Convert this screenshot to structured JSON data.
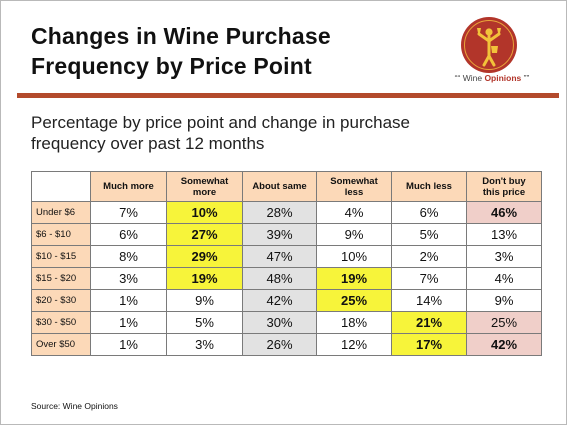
{
  "slide": {
    "title_line1": "Changes in Wine Purchase",
    "title_line2": "Frequency by Price Point",
    "subtitle_line1": "Percentage by price point and change in purchase",
    "subtitle_line2": "frequency over past 12 months",
    "source": "Source: Wine Opinions"
  },
  "logo": {
    "quote_open": "““",
    "brand_plain": "Wine ",
    "brand_bold": "Opinions",
    "quote_close": "””",
    "colors": {
      "circle": "#b2352a",
      "figure": "#f2c23a"
    }
  },
  "table": {
    "columns": [
      {
        "l1": "Much more",
        "l2": ""
      },
      {
        "l1": "Somewhat",
        "l2": "more"
      },
      {
        "l1": "About same",
        "l2": ""
      },
      {
        "l1": "Somewhat",
        "l2": "less"
      },
      {
        "l1": "Much less",
        "l2": ""
      },
      {
        "l1": "Don't buy",
        "l2": "this price"
      }
    ],
    "rows": [
      {
        "label": "Under $6",
        "values": [
          "7%",
          "10%",
          "28%",
          "4%",
          "6%",
          "46%"
        ]
      },
      {
        "label": "$6 - $10",
        "values": [
          "6%",
          "27%",
          "39%",
          "9%",
          "5%",
          "13%"
        ]
      },
      {
        "label": "$10 - $15",
        "values": [
          "8%",
          "29%",
          "47%",
          "10%",
          "2%",
          "3%"
        ]
      },
      {
        "label": "$15 - $20",
        "values": [
          "3%",
          "19%",
          "48%",
          "19%",
          "7%",
          "4%"
        ]
      },
      {
        "label": "$20 - $30",
        "values": [
          "1%",
          "9%",
          "42%",
          "25%",
          "14%",
          "9%"
        ]
      },
      {
        "label": "$30 - $50",
        "values": [
          "1%",
          "5%",
          "30%",
          "18%",
          "21%",
          "25%"
        ]
      },
      {
        "label": "Over $50",
        "values": [
          "1%",
          "3%",
          "26%",
          "12%",
          "17%",
          "42%"
        ]
      }
    ],
    "highlight_colors": {
      "header": "#fcd9b8",
      "gray": "#e2e2e2",
      "yellow": "#f7f43a",
      "pink": "#f0cfc9"
    }
  }
}
